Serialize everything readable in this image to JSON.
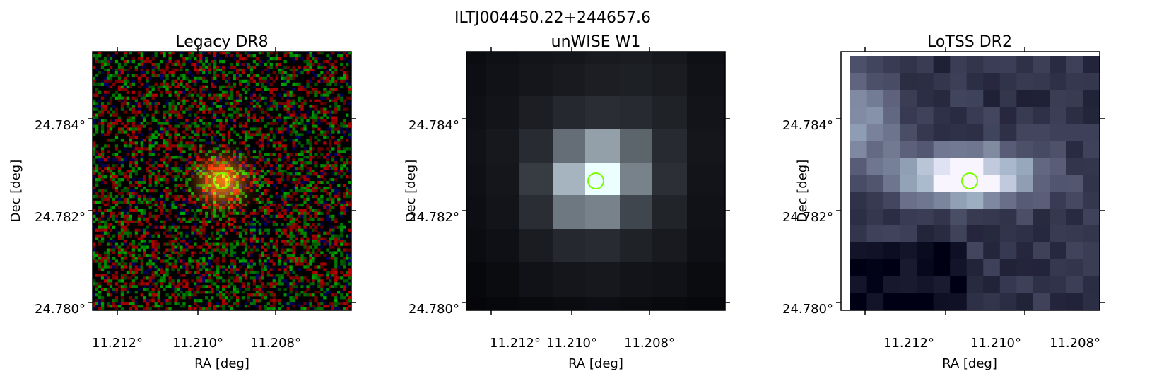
{
  "figure": {
    "title": "ILTJ004450.22+244657.6",
    "marker_color": "#7cfc00"
  },
  "panels": [
    {
      "id": "legacy",
      "title": "Legacy DR8",
      "xlabel": "RA [deg]",
      "ylabel": "Dec [deg]",
      "xticks": [
        "11.212°",
        "11.210°",
        "11.208°"
      ],
      "yticks": [
        "24.784°",
        "24.782°",
        "24.780°"
      ],
      "image": "noisy color optical cutout with orange galaxy at center"
    },
    {
      "id": "unwise",
      "title": "unWISE W1",
      "xlabel": "RA [deg]",
      "ylabel": "Dec [deg]",
      "xticks": [
        "11.212°",
        "11.210°",
        "11.208°"
      ],
      "yticks": [
        "24.784°",
        "24.782°",
        "24.780°"
      ],
      "image": "coarse grayscale infrared cutout with bright source at center"
    },
    {
      "id": "lotss",
      "title": "LoTSS DR2",
      "xlabel": "RA [deg]",
      "ylabel": "Dec [deg]",
      "xticks": [
        "11.212°",
        "11.210°",
        "11.208°"
      ],
      "yticks": [
        "24.784°",
        "24.782°",
        "24.780°"
      ],
      "image": "coarse bone-colormap radio cutout with elongated emission"
    }
  ]
}
